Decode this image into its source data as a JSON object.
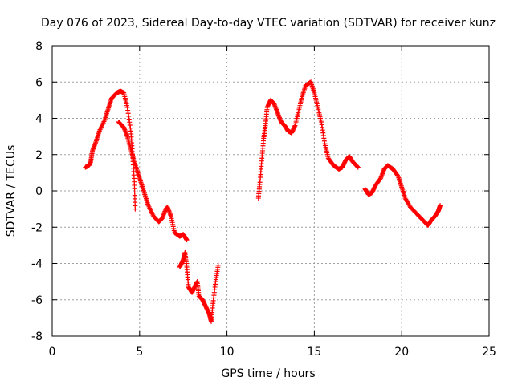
{
  "chart_data": {
    "type": "scatter",
    "title": "Day 076 of 2023, Sidereal Day-to-day VTEC variation (SDTVAR) for receiver kunz",
    "xlabel": "GPS time / hours",
    "ylabel": "SDTVAR / TECUs",
    "xlim": [
      0,
      25
    ],
    "ylim": [
      -8,
      8
    ],
    "xticks": [
      "0",
      "5",
      "10",
      "15",
      "20",
      "25"
    ],
    "yticks": [
      "-8",
      "-6",
      "-4",
      "-2",
      "0",
      "2",
      "4",
      "6",
      "8"
    ],
    "grid": true,
    "legend": "none",
    "marker": "plus",
    "color": "#ff0000",
    "series": [
      {
        "points": [
          [
            1.9,
            1.3
          ],
          [
            2.1,
            1.4
          ],
          [
            2.2,
            1.6
          ],
          [
            2.3,
            2.2
          ],
          [
            2.5,
            2.7
          ],
          [
            2.7,
            3.3
          ],
          [
            3.0,
            3.9
          ],
          [
            3.2,
            4.5
          ],
          [
            3.4,
            5.1
          ],
          [
            3.7,
            5.4
          ],
          [
            3.9,
            5.5
          ],
          [
            4.1,
            5.4
          ],
          [
            4.3,
            4.6
          ],
          [
            4.5,
            3.3
          ],
          [
            4.6,
            2.0
          ],
          [
            4.7,
            0.5
          ],
          [
            4.75,
            -1.0
          ]
        ]
      },
      {
        "points": [
          [
            3.8,
            3.8
          ],
          [
            4.1,
            3.5
          ],
          [
            4.3,
            3.0
          ],
          [
            4.5,
            2.3
          ],
          [
            4.7,
            1.6
          ],
          [
            4.9,
            1.0
          ],
          [
            5.1,
            0.4
          ],
          [
            5.3,
            -0.2
          ],
          [
            5.5,
            -0.8
          ],
          [
            5.8,
            -1.4
          ],
          [
            6.1,
            -1.7
          ],
          [
            6.3,
            -1.5
          ],
          [
            6.5,
            -1.0
          ],
          [
            6.6,
            -0.9
          ],
          [
            6.8,
            -1.4
          ],
          [
            7.0,
            -2.3
          ],
          [
            7.3,
            -2.5
          ],
          [
            7.5,
            -2.4
          ],
          [
            7.7,
            -2.7
          ]
        ]
      },
      {
        "points": [
          [
            7.3,
            -4.2
          ],
          [
            7.5,
            -3.8
          ],
          [
            7.6,
            -3.4
          ],
          [
            7.7,
            -4.2
          ],
          [
            7.8,
            -5.3
          ],
          [
            8.0,
            -5.6
          ],
          [
            8.2,
            -5.2
          ],
          [
            8.3,
            -5.0
          ],
          [
            8.4,
            -5.8
          ],
          [
            8.6,
            -6.0
          ],
          [
            8.8,
            -6.4
          ],
          [
            9.0,
            -6.8
          ],
          [
            9.1,
            -7.2
          ],
          [
            9.2,
            -6.2
          ],
          [
            9.35,
            -5.0
          ],
          [
            9.5,
            -4.1
          ]
        ]
      },
      {
        "points": [
          [
            11.8,
            -0.4
          ],
          [
            11.9,
            0.6
          ],
          [
            12.0,
            1.8
          ],
          [
            12.1,
            2.9
          ],
          [
            12.2,
            3.6
          ],
          [
            12.3,
            4.6
          ],
          [
            12.5,
            5.0
          ],
          [
            12.7,
            4.8
          ],
          [
            12.9,
            4.3
          ],
          [
            13.1,
            3.8
          ],
          [
            13.3,
            3.6
          ],
          [
            13.5,
            3.3
          ],
          [
            13.7,
            3.2
          ],
          [
            13.9,
            3.6
          ],
          [
            14.1,
            4.4
          ],
          [
            14.3,
            5.2
          ],
          [
            14.5,
            5.8
          ],
          [
            14.8,
            6.0
          ],
          [
            15.0,
            5.4
          ],
          [
            15.2,
            4.6
          ],
          [
            15.4,
            3.8
          ],
          [
            15.6,
            2.6
          ],
          [
            15.8,
            1.8
          ],
          [
            16.1,
            1.4
          ],
          [
            16.4,
            1.2
          ],
          [
            16.6,
            1.3
          ],
          [
            16.8,
            1.7
          ],
          [
            17.0,
            1.9
          ],
          [
            17.2,
            1.6
          ],
          [
            17.5,
            1.3
          ]
        ]
      },
      {
        "points": [
          [
            17.9,
            0.1
          ],
          [
            18.1,
            -0.2
          ],
          [
            18.3,
            -0.1
          ],
          [
            18.5,
            0.3
          ],
          [
            18.8,
            0.7
          ],
          [
            19.0,
            1.2
          ],
          [
            19.2,
            1.4
          ],
          [
            19.5,
            1.2
          ],
          [
            19.8,
            0.8
          ],
          [
            20.0,
            0.2
          ],
          [
            20.2,
            -0.4
          ],
          [
            20.5,
            -0.9
          ],
          [
            20.9,
            -1.3
          ],
          [
            21.2,
            -1.6
          ],
          [
            21.5,
            -1.9
          ],
          [
            21.7,
            -1.6
          ],
          [
            21.9,
            -1.4
          ],
          [
            22.1,
            -1.1
          ],
          [
            22.2,
            -0.8
          ]
        ]
      }
    ]
  }
}
